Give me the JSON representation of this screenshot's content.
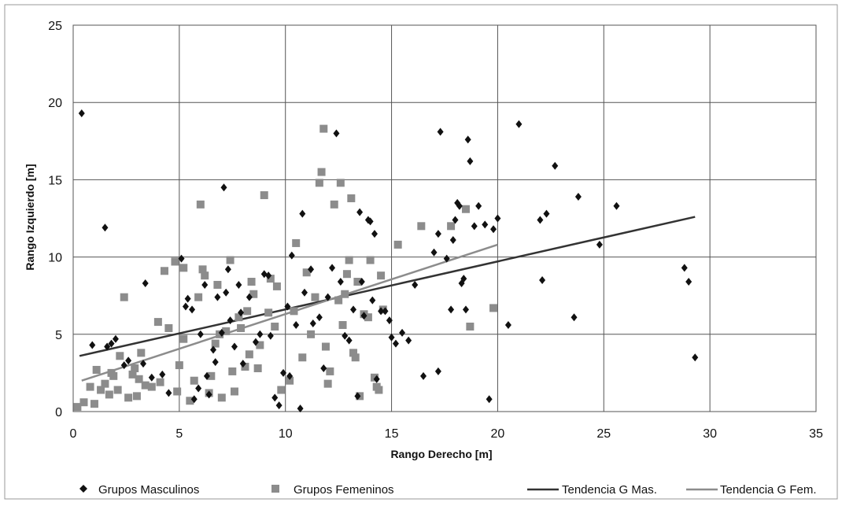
{
  "chart_data": {
    "type": "scatter",
    "xlabel": "Rango Derecho [m]",
    "ylabel": "Rango Izquierdo [m]",
    "xlim": [
      0,
      35
    ],
    "ylim": [
      0,
      25
    ],
    "xticks": [
      "0",
      "5",
      "10",
      "15",
      "20",
      "25",
      "30",
      "35"
    ],
    "yticks": [
      "0",
      "5",
      "10",
      "15",
      "20",
      "25"
    ],
    "grid": true,
    "legend_position": "bottom",
    "series": [
      {
        "name": "Grupos Masculinos",
        "marker": "diamond",
        "color": "#111111",
        "points": [
          [
            0.4,
            19.3
          ],
          [
            1.5,
            11.9
          ],
          [
            0.9,
            4.3
          ],
          [
            1.6,
            4.2
          ],
          [
            1.8,
            4.4
          ],
          [
            2,
            4.7
          ],
          [
            2.4,
            3
          ],
          [
            2.6,
            3.3
          ],
          [
            3.3,
            3.1
          ],
          [
            3.4,
            8.3
          ],
          [
            3.7,
            2.2
          ],
          [
            4.2,
            2.4
          ],
          [
            4.5,
            1.2
          ],
          [
            5.1,
            9.9
          ],
          [
            5.3,
            6.8
          ],
          [
            5.4,
            7.3
          ],
          [
            5.6,
            6.6
          ],
          [
            5.7,
            0.8
          ],
          [
            5.9,
            1.5
          ],
          [
            6,
            5
          ],
          [
            6.2,
            8.2
          ],
          [
            6.3,
            2.3
          ],
          [
            6.4,
            1.1
          ],
          [
            6.6,
            4
          ],
          [
            6.7,
            3.2
          ],
          [
            6.8,
            7.4
          ],
          [
            7,
            5.1
          ],
          [
            7.1,
            14.5
          ],
          [
            7.2,
            7.7
          ],
          [
            7.3,
            9.2
          ],
          [
            7.4,
            5.9
          ],
          [
            7.6,
            4.2
          ],
          [
            7.8,
            8.2
          ],
          [
            7.9,
            6.4
          ],
          [
            8,
            3.1
          ],
          [
            8.3,
            7.4
          ],
          [
            8.6,
            4.5
          ],
          [
            8.8,
            5
          ],
          [
            9,
            8.9
          ],
          [
            9.2,
            8.8
          ],
          [
            9.3,
            4.9
          ],
          [
            9.5,
            0.9
          ],
          [
            9.7,
            0.4
          ],
          [
            9.9,
            2.5
          ],
          [
            10.1,
            6.8
          ],
          [
            10.2,
            2.3
          ],
          [
            10.3,
            10.1
          ],
          [
            10.5,
            5.6
          ],
          [
            10.7,
            0.2
          ],
          [
            10.9,
            7.7
          ],
          [
            10.8,
            12.8
          ],
          [
            11.2,
            9.2
          ],
          [
            11.3,
            5.7
          ],
          [
            11.6,
            6.1
          ],
          [
            11.8,
            2.8
          ],
          [
            12,
            7.4
          ],
          [
            12.2,
            9.3
          ],
          [
            12.4,
            18
          ],
          [
            12.6,
            8.4
          ],
          [
            12.8,
            4.9
          ],
          [
            13,
            4.6
          ],
          [
            13.2,
            6.6
          ],
          [
            13.4,
            1
          ],
          [
            13.5,
            12.9
          ],
          [
            13.6,
            8.4
          ],
          [
            13.7,
            6.2
          ],
          [
            13.9,
            12.4
          ],
          [
            14,
            12.3
          ],
          [
            14.1,
            7.2
          ],
          [
            14.2,
            11.5
          ],
          [
            14.3,
            2.1
          ],
          [
            14.5,
            6.5
          ],
          [
            14.7,
            6.5
          ],
          [
            14.9,
            5.9
          ],
          [
            15,
            4.8
          ],
          [
            15.2,
            4.4
          ],
          [
            15.5,
            5.1
          ],
          [
            15.8,
            4.6
          ],
          [
            16.1,
            8.2
          ],
          [
            16.5,
            2.3
          ],
          [
            17,
            10.3
          ],
          [
            17.2,
            11.5
          ],
          [
            17.3,
            18.1
          ],
          [
            17.8,
            6.6
          ],
          [
            17.6,
            9.9
          ],
          [
            17.9,
            11.1
          ],
          [
            18,
            12.4
          ],
          [
            18.1,
            13.5
          ],
          [
            18.2,
            13.3
          ],
          [
            18.3,
            8.3
          ],
          [
            18.4,
            8.6
          ],
          [
            18.5,
            6.6
          ],
          [
            18.6,
            17.6
          ],
          [
            18.7,
            16.2
          ],
          [
            18.9,
            12
          ],
          [
            19.1,
            13.3
          ],
          [
            19.4,
            12.1
          ],
          [
            19.6,
            0.8
          ],
          [
            19.8,
            11.8
          ],
          [
            20,
            12.5
          ],
          [
            20.5,
            5.6
          ],
          [
            21,
            18.6
          ],
          [
            22,
            12.4
          ],
          [
            22.1,
            8.5
          ],
          [
            22.3,
            12.8
          ],
          [
            22.7,
            15.9
          ],
          [
            23.6,
            6.1
          ],
          [
            23.8,
            13.9
          ],
          [
            24.8,
            10.8
          ],
          [
            25.6,
            13.3
          ],
          [
            28.8,
            9.3
          ],
          [
            29,
            8.4
          ],
          [
            29.3,
            3.5
          ],
          [
            17.2,
            2.6
          ]
        ]
      },
      {
        "name": "Grupos Femeninos",
        "marker": "square",
        "color": "#8c8c8c",
        "points": [
          [
            0.2,
            0.3
          ],
          [
            0.5,
            0.6
          ],
          [
            0.8,
            1.6
          ],
          [
            1,
            0.5
          ],
          [
            1.1,
            2.7
          ],
          [
            1.3,
            1.4
          ],
          [
            1.5,
            1.8
          ],
          [
            1.7,
            1.1
          ],
          [
            1.9,
            2.3
          ],
          [
            2.1,
            1.4
          ],
          [
            2.2,
            3.6
          ],
          [
            2.4,
            7.4
          ],
          [
            2.6,
            0.9
          ],
          [
            2.8,
            2.4
          ],
          [
            3,
            1
          ],
          [
            3.1,
            2.1
          ],
          [
            3.2,
            3.8
          ],
          [
            3.4,
            1.7
          ],
          [
            3.7,
            1.6
          ],
          [
            4,
            5.8
          ],
          [
            4.3,
            9.1
          ],
          [
            4.5,
            5.4
          ],
          [
            4.8,
            9.7
          ],
          [
            4.9,
            1.3
          ],
          [
            5,
            3
          ],
          [
            5.2,
            4.7
          ],
          [
            5.2,
            9.3
          ],
          [
            5.5,
            0.7
          ],
          [
            5.7,
            2
          ],
          [
            5.9,
            7.4
          ],
          [
            6,
            13.4
          ],
          [
            6.1,
            9.2
          ],
          [
            6.2,
            8.8
          ],
          [
            6.4,
            1.2
          ],
          [
            6.5,
            2.3
          ],
          [
            6.7,
            4.4
          ],
          [
            6.8,
            8.2
          ],
          [
            7,
            0.9
          ],
          [
            7.2,
            5.2
          ],
          [
            7.4,
            9.8
          ],
          [
            7.5,
            2.6
          ],
          [
            7.6,
            1.3
          ],
          [
            7.8,
            6.1
          ],
          [
            7.9,
            5.4
          ],
          [
            8.1,
            2.9
          ],
          [
            8.2,
            6.5
          ],
          [
            8.4,
            8.4
          ],
          [
            8.5,
            7.6
          ],
          [
            8.7,
            2.8
          ],
          [
            8.8,
            4.3
          ],
          [
            9,
            14
          ],
          [
            9.2,
            6.4
          ],
          [
            9.3,
            8.6
          ],
          [
            9.5,
            5.5
          ],
          [
            9.6,
            8.1
          ],
          [
            9.8,
            1.4
          ],
          [
            10.4,
            6.5
          ],
          [
            10.5,
            10.9
          ],
          [
            10.8,
            3.5
          ],
          [
            11,
            9
          ],
          [
            11.2,
            5
          ],
          [
            11.4,
            7.4
          ],
          [
            11.6,
            14.8
          ],
          [
            11.7,
            15.5
          ],
          [
            11.8,
            18.3
          ],
          [
            11.9,
            4.2
          ],
          [
            12,
            1.8
          ],
          [
            12.1,
            2.6
          ],
          [
            12.3,
            13.4
          ],
          [
            12.5,
            7.2
          ],
          [
            12.6,
            14.8
          ],
          [
            12.7,
            5.6
          ],
          [
            12.8,
            7.6
          ],
          [
            12.9,
            8.9
          ],
          [
            13,
            9.8
          ],
          [
            13.1,
            13.8
          ],
          [
            13.2,
            3.8
          ],
          [
            13.3,
            3.5
          ],
          [
            13.4,
            8.4
          ],
          [
            13.5,
            1
          ],
          [
            13.7,
            6.3
          ],
          [
            13.9,
            6.1
          ],
          [
            14,
            9.8
          ],
          [
            14.2,
            2.2
          ],
          [
            14.3,
            1.6
          ],
          [
            14.4,
            1.4
          ],
          [
            14.5,
            8.8
          ],
          [
            14.6,
            6.6
          ],
          [
            15.3,
            10.8
          ],
          [
            16.4,
            12
          ],
          [
            17.8,
            12
          ],
          [
            18.5,
            13.1
          ],
          [
            18.7,
            5.5
          ],
          [
            19.8,
            6.7
          ],
          [
            1.8,
            2.5
          ],
          [
            2.9,
            2.8
          ],
          [
            4.1,
            1.9
          ],
          [
            6.9,
            5
          ],
          [
            8.3,
            3.7
          ],
          [
            10.2,
            2
          ]
        ]
      },
      {
        "name": "Tendencia  G Mas.",
        "type": "line",
        "color": "#333333",
        "x": [
          0.3,
          29.3
        ],
        "y": [
          3.6,
          12.6
        ]
      },
      {
        "name": "Tendencia  G Fem.",
        "type": "line",
        "color": "#8c8c8c",
        "x": [
          0.4,
          20
        ],
        "y": [
          2.0,
          10.8
        ]
      }
    ]
  }
}
